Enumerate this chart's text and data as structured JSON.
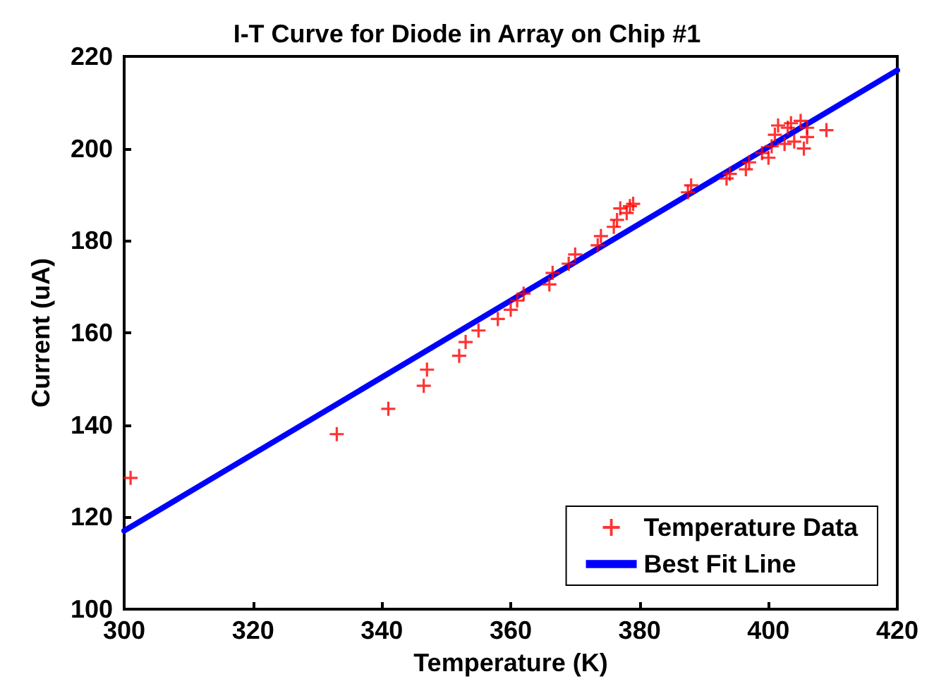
{
  "chart_data": {
    "type": "scatter",
    "title": "I-T Curve for Diode in Array on Chip #1",
    "xlabel": "Temperature (K)",
    "ylabel": "Current (uA)",
    "xlim": [
      300,
      420
    ],
    "ylim": [
      100,
      220
    ],
    "xticks": [
      300,
      320,
      340,
      360,
      380,
      400,
      420
    ],
    "yticks": [
      100,
      120,
      140,
      160,
      180,
      200,
      220
    ],
    "grid": false,
    "legend": "bottom right",
    "series": [
      {
        "name": "Temperature Data",
        "marker": "cross",
        "color": "#ff0000",
        "x": [
          301,
          333,
          341,
          346.5,
          347,
          352,
          353,
          355,
          358,
          360,
          361,
          362,
          366,
          366.5,
          369,
          370,
          373.5,
          374,
          376,
          376.5,
          377,
          378,
          378.5,
          379,
          387.5,
          388,
          393.5,
          394,
          396.5,
          397,
          399,
          400,
          400.5,
          401,
          401.5,
          402.5,
          403,
          403.5,
          404,
          405,
          405.5,
          406,
          406,
          409
        ],
        "values": [
          128.5,
          138,
          143.5,
          148.5,
          152,
          155,
          158,
          160.5,
          163,
          165,
          167,
          168.5,
          170.5,
          173,
          175,
          177,
          179,
          181,
          183,
          184.5,
          187,
          186,
          187.5,
          188,
          190.5,
          192,
          193.5,
          194.5,
          195.5,
          197,
          199,
          198,
          200.5,
          203,
          205,
          201,
          204.5,
          205.5,
          201.5,
          206,
          200,
          202.5,
          204.5,
          204
        ]
      },
      {
        "name": "Best Fit Line",
        "type": "line",
        "color": "#0000ff",
        "line_style": "solid",
        "x": [
          300,
          420
        ],
        "values": [
          117,
          217
        ]
      }
    ]
  }
}
